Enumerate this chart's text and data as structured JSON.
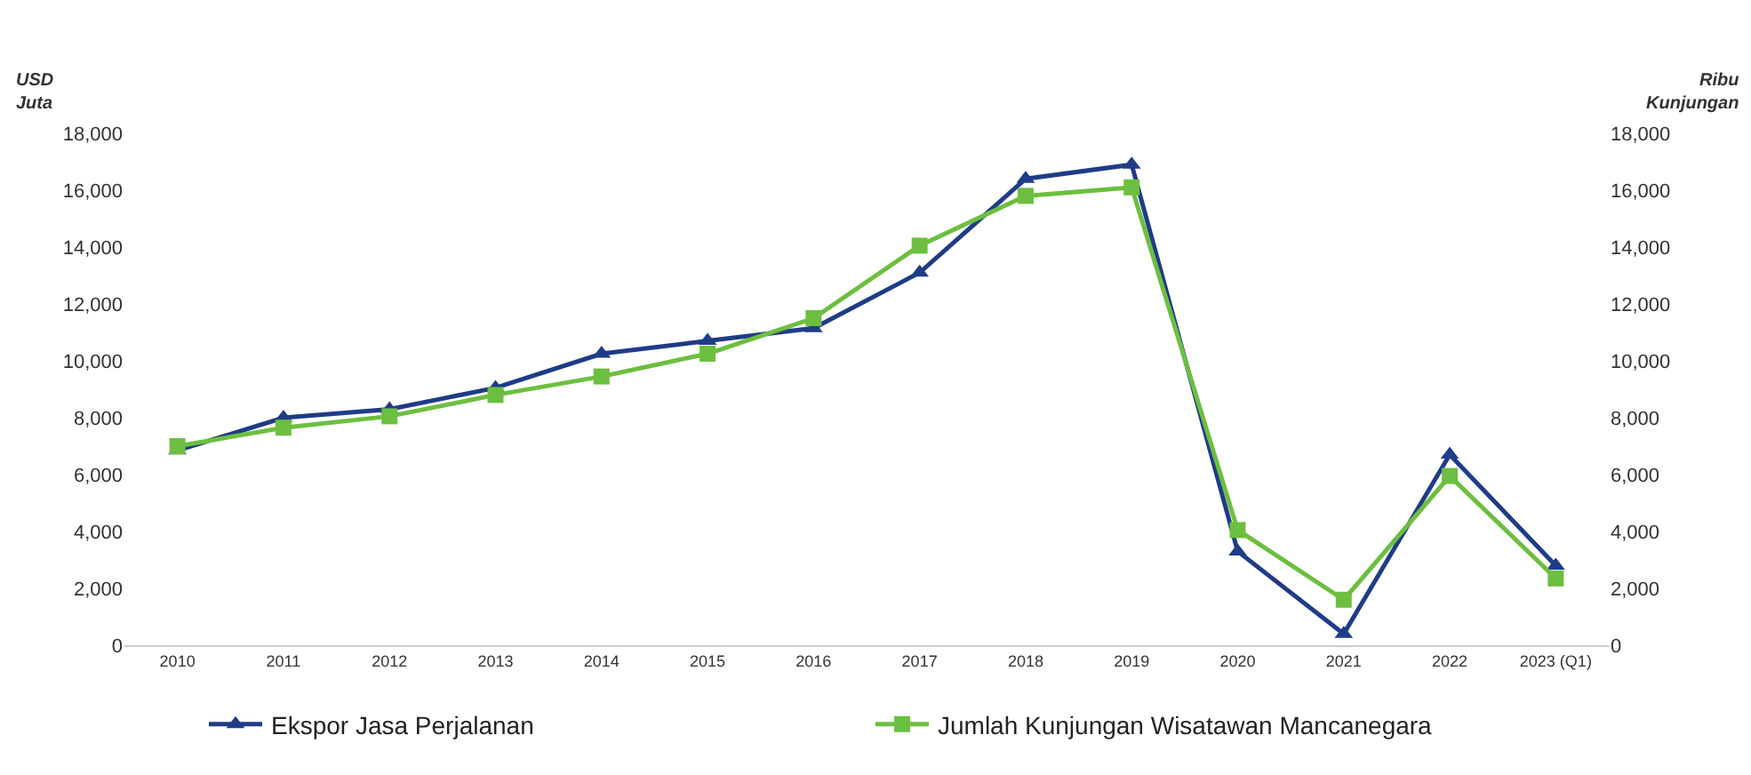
{
  "chart_data": {
    "type": "line",
    "ylabel": "USD Juta",
    "y2label": "Ribu Kunjungan",
    "categories": [
      "2010",
      "2011",
      "2012",
      "2013",
      "2014",
      "2015",
      "2016",
      "2017",
      "2018",
      "2019",
      "2020",
      "2021",
      "2022",
      "2023 (Q1)"
    ],
    "series": [
      {
        "name": "Ekspor Jasa Perjalanan",
        "color": "#1f3c88",
        "marker": "triangle",
        "values": [
          6850,
          8000,
          8300,
          9050,
          10250,
          10700,
          11150,
          13100,
          16400,
          16900,
          3300,
          400,
          6700,
          2800
        ]
      },
      {
        "name": "Jumlah Kunjungan Wisatawan Mancanegara",
        "color": "#6cbf3f",
        "marker": "square",
        "axis": "y2",
        "values": [
          7000,
          7650,
          8050,
          8800,
          9450,
          10250,
          11500,
          14050,
          15800,
          16100,
          4050,
          1600,
          5950,
          2350
        ]
      }
    ],
    "ylim": [
      0,
      18000
    ],
    "yticks": [
      {
        "value": 0,
        "label": "0"
      },
      {
        "value": 2000,
        "label": "2,000"
      },
      {
        "value": 4000,
        "label": "4,000"
      },
      {
        "value": 6000,
        "label": "6,000"
      },
      {
        "value": 8000,
        "label": "8,000"
      },
      {
        "value": 10000,
        "label": "10,000"
      },
      {
        "value": 12000,
        "label": "12,000"
      },
      {
        "value": 14000,
        "label": "14,000"
      },
      {
        "value": 16000,
        "label": "16,000"
      },
      {
        "value": 18000,
        "label": "18,000"
      }
    ],
    "y2lim": [
      0,
      18000
    ],
    "y2ticks": [
      {
        "value": 0,
        "label": "0"
      },
      {
        "value": 2000,
        "label": "2,000"
      },
      {
        "value": 4000,
        "label": "4,000"
      },
      {
        "value": 6000,
        "label": "6,000"
      },
      {
        "value": 8000,
        "label": "8,000"
      },
      {
        "value": 10000,
        "label": "10,000"
      },
      {
        "value": 12000,
        "label": "12,000"
      },
      {
        "value": 14000,
        "label": "14,000"
      },
      {
        "value": 16000,
        "label": "16,000"
      },
      {
        "value": 18000,
        "label": "18,000"
      }
    ],
    "legend": "bottom"
  }
}
